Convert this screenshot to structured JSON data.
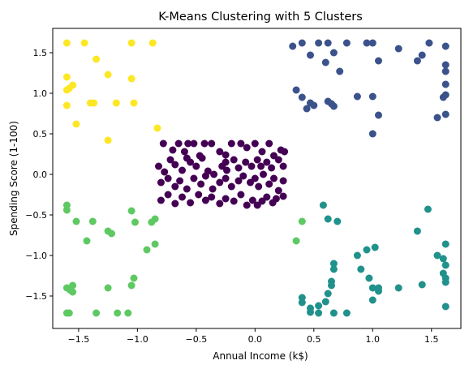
{
  "chart_data": {
    "type": "scatter",
    "title": "K-Means Clustering with 5 Clusters",
    "xlabel": "Annual Income (k$)",
    "ylabel": "Spending Score (1-100)",
    "xlim": [
      -1.72,
      1.75
    ],
    "ylim": [
      -1.9,
      1.8
    ],
    "xticks": [
      -1.5,
      -1.0,
      -0.5,
      0.0,
      0.5,
      1.0,
      1.5
    ],
    "xtick_labels": [
      "−1.5",
      "−1.0",
      "−0.5",
      "0.0",
      "0.5",
      "1.0",
      "1.5"
    ],
    "yticks": [
      -1.5,
      -1.0,
      -0.5,
      0.0,
      0.5,
      1.0,
      1.5
    ],
    "ytick_labels": [
      "−1.5",
      "−1.0",
      "−0.5",
      "0.0",
      "0.5",
      "1.0",
      "1.5"
    ],
    "grid": false,
    "series": [
      {
        "color": "#fde725",
        "points": [
          [
            -1.6,
            1.62
          ],
          [
            -1.45,
            1.62
          ],
          [
            -1.05,
            1.62
          ],
          [
            -0.87,
            1.62
          ],
          [
            -1.6,
            1.2
          ],
          [
            -1.55,
            1.1
          ],
          [
            -1.6,
            1.04
          ],
          [
            -1.58,
            1.06
          ],
          [
            -1.6,
            0.85
          ],
          [
            -1.52,
            0.62
          ],
          [
            -1.35,
            1.42
          ],
          [
            -1.25,
            1.23
          ],
          [
            -1.4,
            0.88
          ],
          [
            -1.37,
            0.88
          ],
          [
            -1.18,
            0.88
          ],
          [
            -1.05,
            1.18
          ],
          [
            -1.03,
            0.88
          ],
          [
            -1.25,
            0.42
          ],
          [
            -0.83,
            0.57
          ]
        ]
      },
      {
        "color": "#3b528b",
        "points": [
          [
            0.32,
            1.58
          ],
          [
            0.4,
            1.62
          ],
          [
            0.47,
            1.47
          ],
          [
            0.54,
            1.62
          ],
          [
            0.6,
            1.38
          ],
          [
            0.62,
            1.62
          ],
          [
            0.67,
            1.5
          ],
          [
            0.72,
            1.27
          ],
          [
            0.78,
            1.62
          ],
          [
            0.95,
            1.62
          ],
          [
            1.0,
            1.62
          ],
          [
            1.05,
            1.4
          ],
          [
            1.0,
            0.96
          ],
          [
            1.05,
            0.73
          ],
          [
            1.0,
            0.5
          ],
          [
            0.35,
            1.04
          ],
          [
            0.4,
            0.95
          ],
          [
            0.44,
            0.81
          ],
          [
            0.47,
            0.88
          ],
          [
            0.5,
            0.85
          ],
          [
            0.62,
            0.9
          ],
          [
            0.65,
            0.87
          ],
          [
            0.67,
            0.84
          ],
          [
            0.87,
            0.96
          ],
          [
            1.22,
            1.55
          ],
          [
            1.38,
            1.4
          ],
          [
            1.42,
            1.47
          ],
          [
            1.48,
            1.62
          ],
          [
            1.55,
            0.7
          ],
          [
            1.6,
            0.95
          ],
          [
            1.62,
            1.58
          ],
          [
            1.62,
            1.35
          ],
          [
            1.62,
            1.27
          ],
          [
            1.62,
            1.11
          ],
          [
            1.62,
            0.98
          ],
          [
            1.62,
            0.74
          ]
        ]
      },
      {
        "color": "#440154",
        "points": [
          [
            -0.78,
            0.38
          ],
          [
            -0.7,
            0.3
          ],
          [
            -0.65,
            0.38
          ],
          [
            -0.6,
            0.28
          ],
          [
            -0.57,
            0.38
          ],
          [
            -0.52,
            0.38
          ],
          [
            -0.47,
            0.23
          ],
          [
            -0.43,
            0.38
          ],
          [
            -0.37,
            0.38
          ],
          [
            -0.3,
            0.28
          ],
          [
            -0.25,
            0.24
          ],
          [
            -0.25,
            0.15
          ],
          [
            -0.2,
            0.38
          ],
          [
            -0.12,
            0.38
          ],
          [
            -0.07,
            0.33
          ],
          [
            0.0,
            0.38
          ],
          [
            0.06,
            0.28
          ],
          [
            0.12,
            0.38
          ],
          [
            0.16,
            0.23
          ],
          [
            0.22,
            0.3
          ],
          [
            0.25,
            0.28
          ],
          [
            -0.82,
            0.1
          ],
          [
            -0.77,
            0.03
          ],
          [
            -0.72,
            0.18
          ],
          [
            -0.68,
            0.12
          ],
          [
            -0.62,
            0.05
          ],
          [
            -0.58,
            0.2
          ],
          [
            -0.55,
            0.15
          ],
          [
            -0.5,
            0.1
          ],
          [
            -0.45,
            0.2
          ],
          [
            -0.4,
            0.04
          ],
          [
            -0.35,
            0.0
          ],
          [
            -0.28,
            0.1
          ],
          [
            -0.24,
            0.05
          ],
          [
            -0.18,
            0.18
          ],
          [
            -0.14,
            0.08
          ],
          [
            -0.08,
            0.15
          ],
          [
            -0.03,
            0.1
          ],
          [
            0.02,
            0.18
          ],
          [
            0.05,
            0.1
          ],
          [
            0.1,
            0.15
          ],
          [
            0.14,
            0.08
          ],
          [
            0.2,
            0.18
          ],
          [
            0.24,
            0.1
          ],
          [
            -0.8,
            -0.1
          ],
          [
            -0.74,
            -0.05
          ],
          [
            -0.68,
            -0.15
          ],
          [
            -0.64,
            -0.08
          ],
          [
            -0.58,
            -0.18
          ],
          [
            -0.52,
            -0.05
          ],
          [
            -0.46,
            -0.12
          ],
          [
            -0.42,
            -0.02
          ],
          [
            -0.36,
            -0.18
          ],
          [
            -0.3,
            -0.1
          ],
          [
            -0.25,
            -0.05
          ],
          [
            -0.2,
            -0.15
          ],
          [
            -0.14,
            -0.08
          ],
          [
            -0.1,
            -0.02
          ],
          [
            -0.04,
            -0.1
          ],
          [
            0.0,
            -0.05
          ],
          [
            0.03,
            -0.15
          ],
          [
            0.07,
            0.0
          ],
          [
            0.12,
            -0.12
          ],
          [
            0.16,
            -0.05
          ],
          [
            0.2,
            -0.2
          ],
          [
            0.24,
            -0.08
          ],
          [
            -0.8,
            -0.32
          ],
          [
            -0.74,
            -0.25
          ],
          [
            -0.68,
            -0.36
          ],
          [
            -0.62,
            -0.28
          ],
          [
            -0.55,
            -0.35
          ],
          [
            -0.48,
            -0.25
          ],
          [
            -0.42,
            -0.32
          ],
          [
            -0.37,
            -0.28
          ],
          [
            -0.3,
            -0.36
          ],
          [
            -0.25,
            -0.3
          ],
          [
            -0.18,
            -0.33
          ],
          [
            -0.12,
            -0.25
          ],
          [
            -0.07,
            -0.38
          ],
          [
            -0.02,
            -0.32
          ],
          [
            0.02,
            -0.38
          ],
          [
            0.06,
            -0.33
          ],
          [
            0.1,
            -0.28
          ],
          [
            0.15,
            -0.35
          ],
          [
            0.18,
            -0.3
          ],
          [
            0.24,
            -0.27
          ]
        ]
      },
      {
        "color": "#5ec962",
        "points": [
          [
            -1.6,
            -0.38
          ],
          [
            -1.6,
            -0.44
          ],
          [
            -1.52,
            -0.58
          ],
          [
            -1.38,
            -0.58
          ],
          [
            -1.43,
            -0.82
          ],
          [
            -1.25,
            -0.7
          ],
          [
            -1.22,
            -0.73
          ],
          [
            -1.05,
            -0.45
          ],
          [
            -1.02,
            -0.59
          ],
          [
            -0.88,
            -0.59
          ],
          [
            -0.85,
            -0.55
          ],
          [
            -0.85,
            -0.86
          ],
          [
            -0.92,
            -0.93
          ],
          [
            -1.03,
            -1.28
          ],
          [
            -1.05,
            -1.37
          ],
          [
            -1.25,
            -1.4
          ],
          [
            -1.55,
            -1.37
          ],
          [
            -1.6,
            -1.4
          ],
          [
            -1.57,
            -1.43
          ],
          [
            -1.55,
            -1.45
          ],
          [
            -1.6,
            -1.71
          ],
          [
            -1.58,
            -1.71
          ],
          [
            -1.35,
            -1.71
          ],
          [
            -1.17,
            -1.71
          ],
          [
            -1.08,
            -1.71
          ],
          [
            0.35,
            -0.82
          ],
          [
            0.4,
            -0.58
          ]
        ]
      },
      {
        "color": "#21918c",
        "points": [
          [
            0.4,
            -1.52
          ],
          [
            0.4,
            -1.58
          ],
          [
            0.47,
            -1.65
          ],
          [
            0.47,
            -1.7
          ],
          [
            0.54,
            -1.62
          ],
          [
            0.54,
            -1.71
          ],
          [
            0.6,
            -1.57
          ],
          [
            0.62,
            -1.47
          ],
          [
            0.65,
            -1.37
          ],
          [
            0.65,
            -1.32
          ],
          [
            0.67,
            -1.1
          ],
          [
            0.67,
            -1.17
          ],
          [
            0.67,
            -1.71
          ],
          [
            0.78,
            -1.71
          ],
          [
            0.87,
            -1.0
          ],
          [
            0.9,
            -1.17
          ],
          [
            0.95,
            -0.93
          ],
          [
            0.97,
            -1.28
          ],
          [
            1.0,
            -1.4
          ],
          [
            1.0,
            -1.55
          ],
          [
            1.02,
            -0.9
          ],
          [
            1.05,
            -1.44
          ],
          [
            1.05,
            -1.4
          ],
          [
            1.22,
            -1.4
          ],
          [
            1.38,
            -0.7
          ],
          [
            1.42,
            -1.36
          ],
          [
            1.47,
            -0.43
          ],
          [
            1.55,
            -1.0
          ],
          [
            1.6,
            -1.04
          ],
          [
            1.6,
            -1.22
          ],
          [
            1.62,
            -0.86
          ],
          [
            1.62,
            -1.12
          ],
          [
            1.62,
            -1.28
          ],
          [
            1.62,
            -1.33
          ],
          [
            1.62,
            -1.63
          ],
          [
            0.62,
            -0.55
          ],
          [
            0.7,
            -0.58
          ],
          [
            0.58,
            -0.38
          ]
        ]
      }
    ]
  }
}
